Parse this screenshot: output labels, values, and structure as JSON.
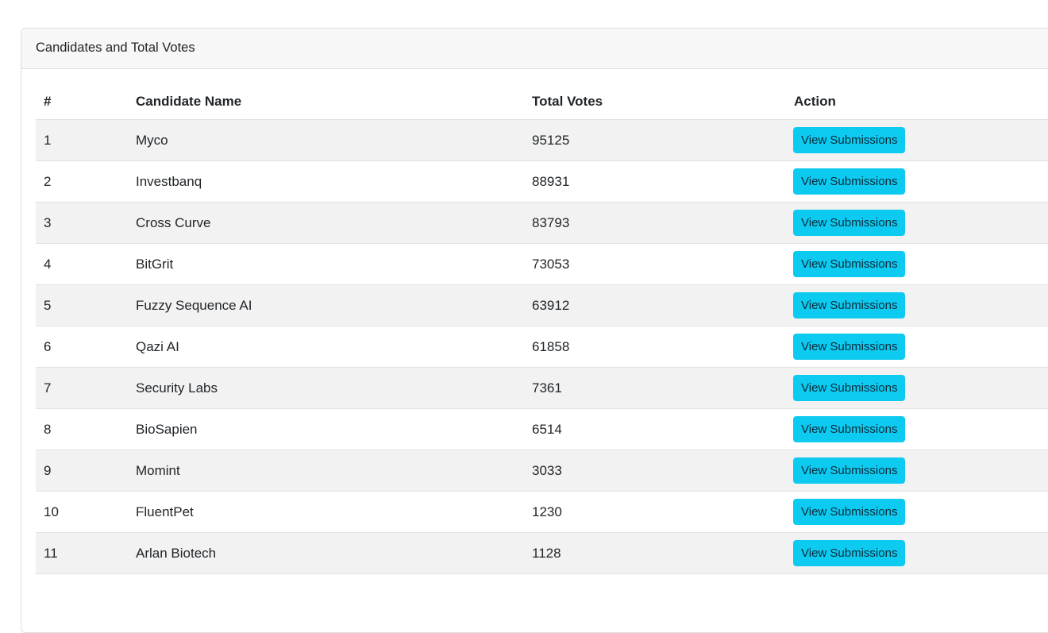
{
  "card": {
    "title": "Candidates and Total Votes"
  },
  "table": {
    "headers": [
      "#",
      "Candidate Name",
      "Total Votes",
      "Action"
    ],
    "rows": [
      {
        "rank": "1",
        "name": "Myco",
        "votes": "95125",
        "action": "View Submissions"
      },
      {
        "rank": "2",
        "name": "Investbanq",
        "votes": "88931",
        "action": "View Submissions"
      },
      {
        "rank": "3",
        "name": "Cross Curve",
        "votes": "83793",
        "action": "View Submissions"
      },
      {
        "rank": "4",
        "name": "BitGrit",
        "votes": "73053",
        "action": "View Submissions"
      },
      {
        "rank": "5",
        "name": "Fuzzy Sequence AI",
        "votes": "63912",
        "action": "View Submissions"
      },
      {
        "rank": "6",
        "name": "Qazi AI",
        "votes": "61858",
        "action": "View Submissions"
      },
      {
        "rank": "7",
        "name": "Security Labs",
        "votes": "7361",
        "action": "View Submissions"
      },
      {
        "rank": "8",
        "name": "BioSapien",
        "votes": "6514",
        "action": "View Submissions"
      },
      {
        "rank": "9",
        "name": "Momint",
        "votes": "3033",
        "action": "View Submissions"
      },
      {
        "rank": "10",
        "name": "FluentPet",
        "votes": "1230",
        "action": "View Submissions"
      },
      {
        "rank": "11",
        "name": "Arlan Biotech",
        "votes": "1128",
        "action": "View Submissions"
      }
    ]
  },
  "colors": {
    "button": "#0dcaf0",
    "stripe": "#f2f2f2"
  }
}
